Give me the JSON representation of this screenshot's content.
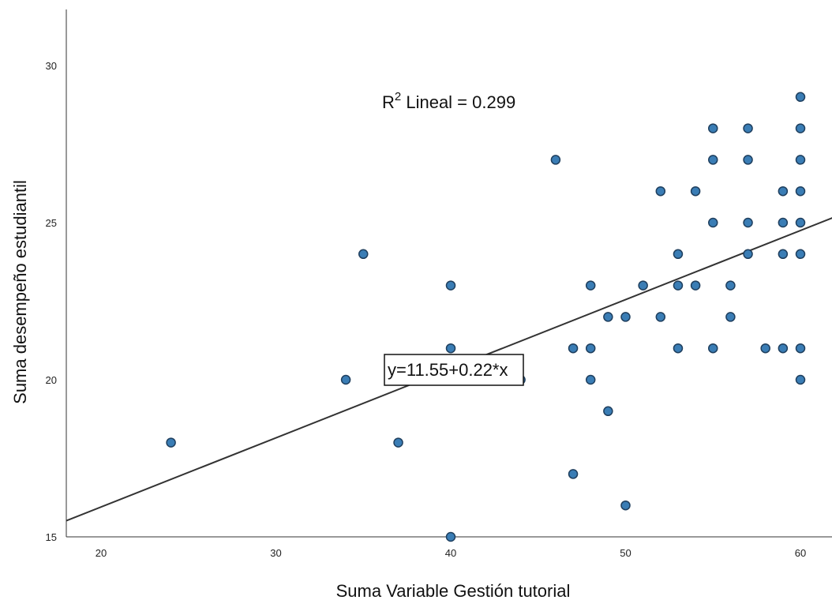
{
  "chart_data": {
    "type": "scatter",
    "title": "",
    "xlabel": "Suma Variable Gestión tutorial",
    "ylabel": "Suma desempeño estudiantil",
    "xlim": [
      18,
      62
    ],
    "ylim": [
      15,
      32
    ],
    "x_ticks": [
      "20",
      "30",
      "40",
      "50",
      "60"
    ],
    "y_ticks": [
      "15",
      "20",
      "25",
      "30"
    ],
    "grid": false,
    "point_color": "#3A7DB5",
    "point_edge_color": "#1F3F5E",
    "line_color": "#333333",
    "r2_prefix": "R",
    "r2_sup": "2",
    "r2_text": " Lineal = 0.299",
    "equation_label": "y=11.55+0.22*x",
    "fit": {
      "intercept": 11.55,
      "slope": 0.22
    },
    "points": [
      [
        24,
        18
      ],
      [
        34,
        20
      ],
      [
        35,
        24
      ],
      [
        37,
        18
      ],
      [
        40,
        23
      ],
      [
        40,
        21
      ],
      [
        40,
        15
      ],
      [
        44,
        20
      ],
      [
        46,
        27
      ],
      [
        47,
        21
      ],
      [
        47,
        17
      ],
      [
        48,
        23
      ],
      [
        48,
        21
      ],
      [
        48,
        20
      ],
      [
        49,
        22
      ],
      [
        49,
        19
      ],
      [
        50,
        22
      ],
      [
        50,
        16
      ],
      [
        51,
        23
      ],
      [
        52,
        26
      ],
      [
        52,
        22
      ],
      [
        53,
        24
      ],
      [
        53,
        23
      ],
      [
        53,
        21
      ],
      [
        54,
        26
      ],
      [
        54,
        23
      ],
      [
        55,
        28
      ],
      [
        55,
        27
      ],
      [
        55,
        25
      ],
      [
        55,
        21
      ],
      [
        56,
        23
      ],
      [
        56,
        22
      ],
      [
        57,
        28
      ],
      [
        57,
        27
      ],
      [
        57,
        25
      ],
      [
        57,
        24
      ],
      [
        58,
        21
      ],
      [
        59,
        26
      ],
      [
        59,
        25
      ],
      [
        59,
        24
      ],
      [
        59,
        21
      ],
      [
        60,
        29
      ],
      [
        60,
        28
      ],
      [
        60,
        27
      ],
      [
        60,
        26
      ],
      [
        60,
        25
      ],
      [
        60,
        24
      ],
      [
        60,
        21
      ],
      [
        60,
        20
      ]
    ]
  }
}
